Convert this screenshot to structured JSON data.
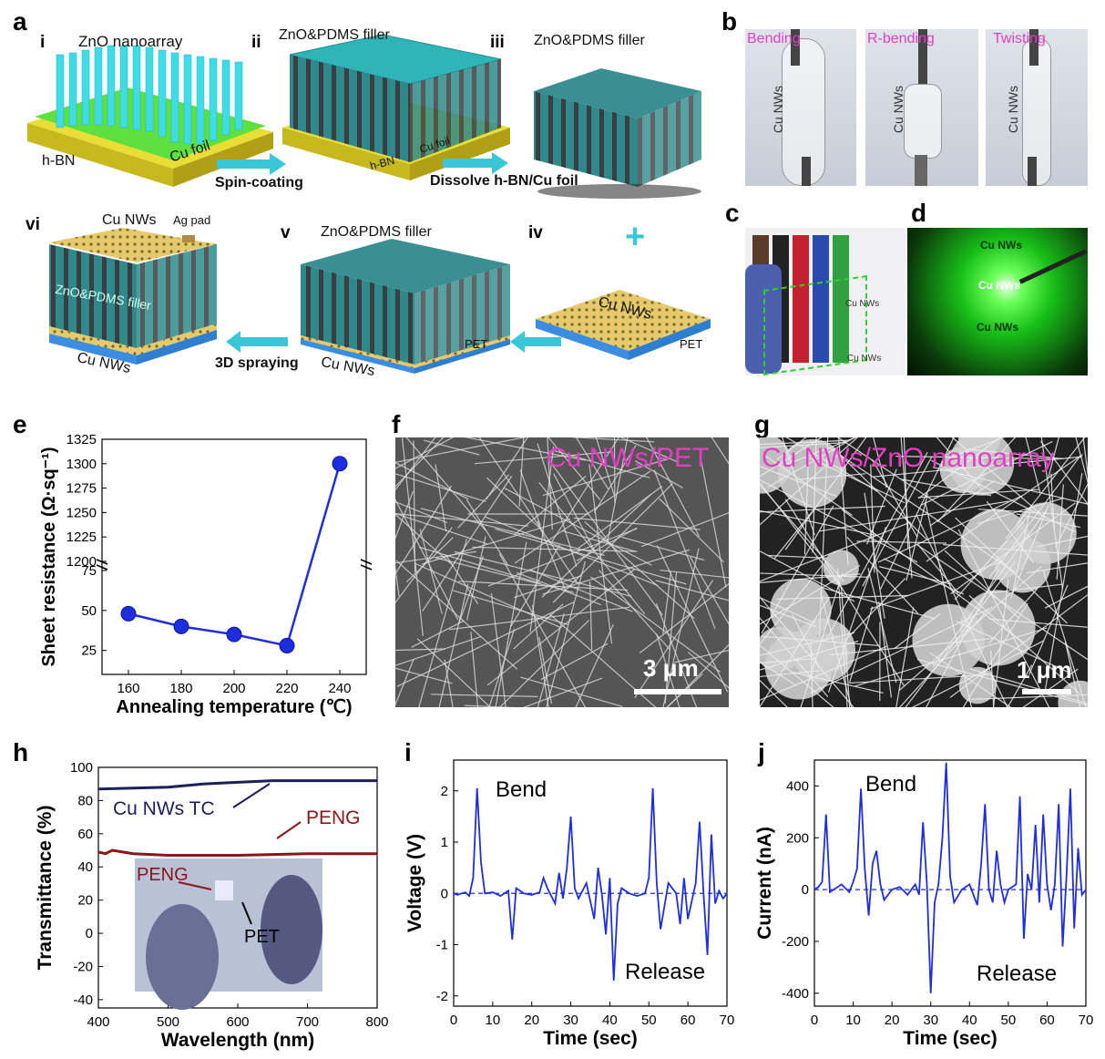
{
  "panels": {
    "a": "a",
    "b": "b",
    "c": "c",
    "d": "d",
    "e": "e",
    "f": "f",
    "g": "g",
    "h": "h",
    "i": "i",
    "j": "j"
  },
  "schematic": {
    "steps": {
      "i": "i",
      "ii": "ii",
      "iii": "iii",
      "iv": "iv",
      "v": "v",
      "vi": "vi"
    },
    "zno_nanoarray": "ZnO nanoarray",
    "zno_pdms_filler": "ZnO&PDMS filler",
    "zno_pdms_filler_inner": "ZnO&PDMS filler",
    "hbn": "h-BN",
    "cu_foil": "Cu foil",
    "cu_nws": "Cu NWs",
    "ag_pad": "Ag pad",
    "pet": "PET",
    "plus": "+",
    "arrow_spin": "Spin-coating",
    "arrow_dissolve": "Dissolve h-BN/Cu foil",
    "arrow_spray": "3D spraying"
  },
  "photos_b": {
    "bending": "Bending",
    "r_bending": "R-bending",
    "twisting": "Twisting",
    "bg_text": "Cu NWs"
  },
  "photo_c": {
    "bg_text": "Cu NWs"
  },
  "photo_d": {
    "bg_text": "Cu NWs"
  },
  "sem_f": {
    "label": "Cu NWs/PET",
    "scale": "3 μm"
  },
  "sem_g": {
    "label": "Cu NWs/ZnO nanoarray",
    "scale": "1 μm"
  },
  "colors": {
    "pink": "#e23fc4",
    "blue": "#1f2de0",
    "navy": "#1b1f5a",
    "darkred": "#8b1518",
    "cyan": "#35c8d8",
    "green": "#18e020"
  },
  "chart_data": [
    {
      "id": "e",
      "type": "scatter",
      "xlabel": "Annealing temperature (℃)",
      "ylabel": "Sheet resistance (Ω·sq⁻¹)",
      "axis_break": true,
      "xlim": [
        150,
        250
      ],
      "lower_ylim": [
        10,
        75
      ],
      "upper_ylim": [
        1200,
        1325
      ],
      "xticks": [
        "160",
        "180",
        "200",
        "220",
        "240"
      ],
      "yticks_lower": [
        "25",
        "50",
        "75"
      ],
      "yticks_upper": [
        "1200",
        "1225",
        "1250",
        "1275",
        "1300",
        "1325"
      ],
      "x": [
        160,
        180,
        200,
        220,
        240
      ],
      "y": [
        48,
        40,
        35,
        28,
        1300
      ]
    },
    {
      "id": "h",
      "type": "line",
      "xlabel": "Wavelength (nm)",
      "ylabel": "Transmittance (%)",
      "xlim": [
        400,
        800
      ],
      "ylim": [
        -45,
        100
      ],
      "xticks": [
        "400",
        "500",
        "600",
        "700",
        "800"
      ],
      "yticks": [
        "100",
        "80",
        "60",
        "40",
        "20",
        "0",
        "-20",
        "-40"
      ],
      "series": [
        {
          "name": "Cu NWs TC",
          "x": [
            400,
            500,
            550,
            600,
            650,
            700,
            800
          ],
          "y": [
            87,
            88,
            90,
            91,
            92,
            92,
            92
          ]
        },
        {
          "name": "PENG",
          "x": [
            400,
            410,
            420,
            450,
            500,
            600,
            700,
            800
          ],
          "y": [
            49,
            48,
            50,
            48,
            47,
            47,
            48,
            48
          ]
        }
      ],
      "inset": {
        "peng": "PENG",
        "pet": "PET"
      }
    },
    {
      "id": "i",
      "type": "line",
      "xlabel": "Time (sec)",
      "ylabel": "Voltage (V)",
      "xlim": [
        0,
        70
      ],
      "ylim": [
        -2.2,
        2.6
      ],
      "xticks": [
        "0",
        "10",
        "20",
        "30",
        "40",
        "50",
        "60",
        "70"
      ],
      "yticks": [
        "2",
        "1",
        "0",
        "-1",
        "-2"
      ],
      "annotations": {
        "bend": "Bend",
        "release": "Release"
      },
      "series": [
        {
          "x": [
            0,
            1,
            2,
            3,
            4,
            5,
            6,
            7,
            8,
            10,
            12,
            14,
            15,
            16,
            18,
            20,
            22,
            23,
            24,
            26,
            27,
            28,
            29,
            30,
            31,
            32,
            34,
            36,
            37,
            38,
            39,
            40,
            41,
            42,
            43,
            45,
            47,
            49,
            50,
            51,
            52,
            53,
            55,
            57,
            58,
            59,
            60,
            62,
            63,
            64,
            65,
            66,
            67,
            68,
            69,
            70
          ],
          "y": [
            0,
            -0.03,
            0,
            0.02,
            -0.05,
            0.3,
            2.05,
            0.6,
            0,
            0.02,
            -0.05,
            0.05,
            -0.9,
            0.1,
            0,
            -0.03,
            0.02,
            0.3,
            0.1,
            -0.2,
            0.4,
            -0.1,
            0.5,
            1.5,
            0.1,
            -0.1,
            0.2,
            -0.5,
            0.5,
            -0.05,
            -0.8,
            0.3,
            -1.7,
            -0.2,
            0.1,
            0,
            -0.05,
            0,
            0.3,
            2.05,
            0.2,
            -0.7,
            0.2,
            0,
            -0.6,
            0.3,
            -0.5,
            0.2,
            1.4,
            0,
            -1.2,
            1.15,
            -0.2,
            0.05,
            -0.1,
            0
          ]
        }
      ]
    },
    {
      "id": "j",
      "type": "line",
      "xlabel": "Time (sec)",
      "ylabel": "Current (nA)",
      "xlim": [
        0,
        70
      ],
      "ylim": [
        -450,
        500
      ],
      "xticks": [
        "0",
        "10",
        "20",
        "30",
        "40",
        "50",
        "60",
        "70"
      ],
      "yticks": [
        "400",
        "200",
        "0",
        "-200",
        "-400"
      ],
      "annotations": {
        "bend": "Bend",
        "release": "Release"
      },
      "series": [
        {
          "x": [
            0,
            1,
            2,
            3,
            4,
            5,
            7,
            9,
            10,
            11,
            12,
            13,
            14,
            15,
            16,
            17,
            18,
            20,
            22,
            24,
            26,
            27,
            28,
            29,
            30,
            31,
            32,
            33,
            34,
            35,
            36,
            38,
            40,
            42,
            43,
            44,
            45,
            46,
            47,
            48,
            49,
            50,
            52,
            53,
            54,
            55,
            56,
            57,
            58,
            59,
            60,
            61,
            62,
            63,
            64,
            65,
            66,
            67,
            68,
            69,
            70
          ],
          "y": [
            0,
            10,
            30,
            290,
            -10,
            0,
            20,
            -10,
            30,
            80,
            390,
            80,
            -100,
            100,
            150,
            20,
            -40,
            0,
            10,
            -20,
            20,
            -20,
            260,
            20,
            -400,
            -50,
            20,
            200,
            490,
            50,
            -50,
            0,
            20,
            -60,
            100,
            330,
            0,
            -50,
            150,
            20,
            -50,
            0,
            20,
            360,
            -190,
            60,
            0,
            250,
            -50,
            290,
            20,
            -80,
            20,
            330,
            -220,
            50,
            390,
            -150,
            160,
            -20,
            0
          ]
        }
      ]
    }
  ]
}
